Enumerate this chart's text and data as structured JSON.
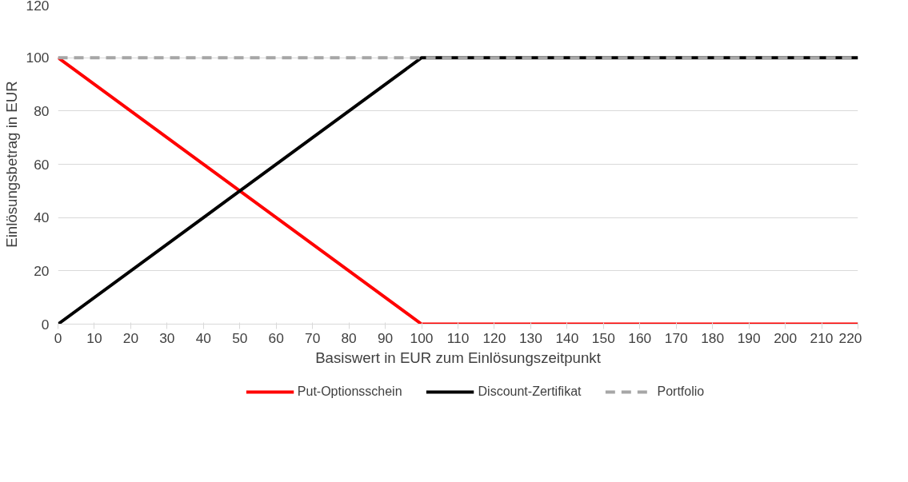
{
  "chart_data": {
    "type": "line",
    "xlabel": "Basiswert in EUR zum Einlösungszeitpunkt",
    "ylabel": "Einlösungsbetrag in EUR",
    "xlim": [
      0,
      220
    ],
    "xticks": [
      0,
      10,
      20,
      30,
      40,
      50,
      60,
      70,
      80,
      90,
      100,
      110,
      120,
      130,
      140,
      150,
      160,
      170,
      180,
      190,
      200,
      210,
      220
    ],
    "ylim": [
      0,
      120
    ],
    "yticks": [
      0,
      20,
      40,
      60,
      80,
      100,
      120
    ],
    "grid": "y",
    "legend": "bottom",
    "marker": "none",
    "series": [
      {
        "name": "Put-Optionsschein",
        "color": "#ff0000",
        "x": [
          0,
          100,
          220
        ],
        "values": [
          100,
          0,
          0
        ],
        "line_style": "solid"
      },
      {
        "name": "Discount-Zertifikat",
        "color": "#000000",
        "x": [
          0,
          100,
          220
        ],
        "values": [
          0,
          100,
          100
        ],
        "line_style": "solid"
      },
      {
        "name": "Portfolio",
        "color": "#a6a6a6",
        "x": [
          0,
          220
        ],
        "values": [
          100,
          100
        ],
        "line_style": "dashed"
      }
    ]
  }
}
